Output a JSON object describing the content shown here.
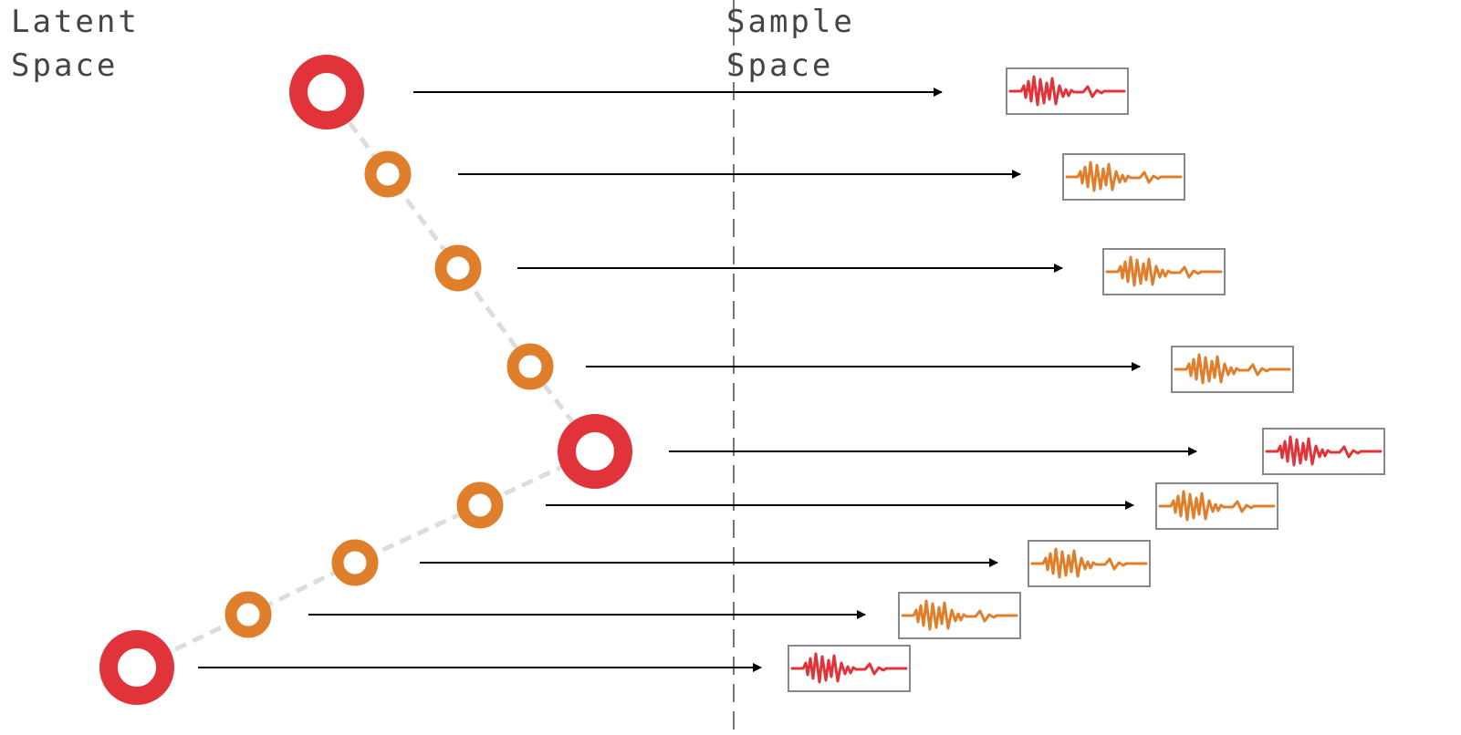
{
  "labels": {
    "latent": "Latent\nSpace",
    "sample": "Sample\nSpace"
  },
  "colors": {
    "anchor": "#e0343a",
    "interpolated": "#e07f2b",
    "path": "#dddddd",
    "arrow": "#000000",
    "divider": "#777777",
    "box_border": "#888888"
  },
  "points": [
    {
      "kind": "anchor"
    },
    {
      "kind": "interpolated"
    },
    {
      "kind": "interpolated"
    },
    {
      "kind": "interpolated"
    },
    {
      "kind": "anchor"
    },
    {
      "kind": "interpolated"
    },
    {
      "kind": "interpolated"
    },
    {
      "kind": "interpolated"
    },
    {
      "kind": "anchor"
    }
  ]
}
